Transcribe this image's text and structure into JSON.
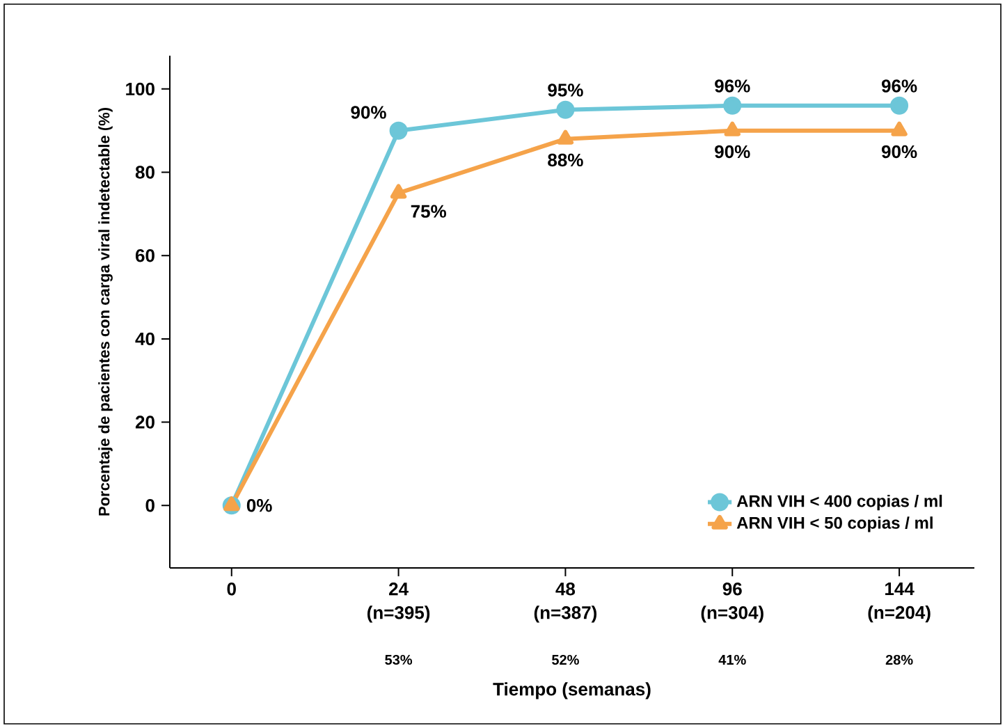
{
  "chart_data": {
    "type": "line",
    "xlabel": "Tiempo (semanas)",
    "ylabel": "Porcentaje de pacientes con carga viral indetectable (%)",
    "categories": [
      "0",
      "24 (n=395)",
      "48 (n=387)",
      "96 (n=304)",
      "144 (n=204)"
    ],
    "series": [
      {
        "name": "ARN VIH < 400 copias / ml",
        "color": "#6cc6d8",
        "marker": "circle",
        "values": [
          0,
          90,
          95,
          96,
          96
        ],
        "value_labels": [
          null,
          "90%",
          "95%",
          "96%",
          "96%"
        ]
      },
      {
        "name": "ARN VIH < 50 copias / ml",
        "color": "#f5a34a",
        "marker": "triangle",
        "values": [
          0,
          75,
          88,
          90,
          90
        ],
        "value_labels": [
          "0%",
          "75%",
          "88%",
          "90%",
          "90%"
        ]
      }
    ],
    "ylim": [
      -15,
      108
    ],
    "yticks": [
      0,
      20,
      40,
      60,
      80,
      100
    ],
    "grid": false,
    "legend": "bottom right",
    "line_style": "solid",
    "annotations": [
      "53%",
      "52%",
      "41%",
      "28%"
    ]
  }
}
